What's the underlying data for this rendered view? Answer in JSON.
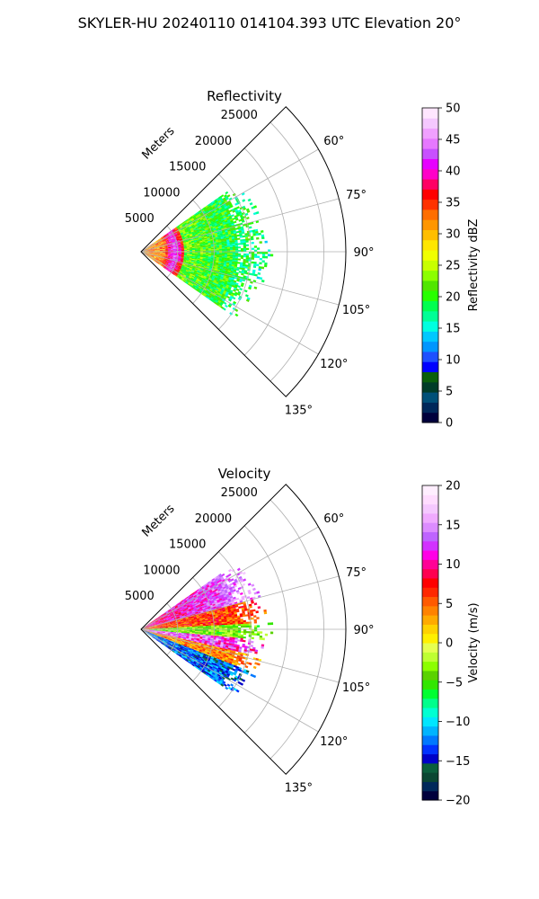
{
  "figure": {
    "title": "SKYLER-HU  20240110  014104.393 UTC Elevation 20°"
  },
  "chart_data": [
    {
      "type": "heatmap",
      "subtype": "polar-sector",
      "title": "Reflectivity",
      "range_label": "Meters",
      "range_ticks": [
        5000,
        10000,
        15000,
        20000,
        25000
      ],
      "range_lim": [
        0,
        28000
      ],
      "azimuth_range_deg": [
        45,
        135
      ],
      "azimuth_ticks": [
        "60°",
        "75°",
        "90°",
        "105°",
        "120°",
        "135°"
      ],
      "data_azimuth_range_deg": [
        55,
        125
      ],
      "data_max_range_m": 16500,
      "grid": true,
      "colorbar": {
        "label": "Reflectivity dBZ",
        "range": [
          0,
          50
        ],
        "ticks": [
          0,
          5,
          10,
          15,
          20,
          25,
          30,
          35,
          40,
          45,
          50
        ],
        "colors": [
          "#00003c",
          "#00285a",
          "#005078",
          "#003c28",
          "#0a5f0a",
          "#0000ff",
          "#1e50ff",
          "#0096ff",
          "#00c8ff",
          "#00ffe0",
          "#00ff96",
          "#00ff50",
          "#28ff00",
          "#50e600",
          "#8cff00",
          "#c8ff00",
          "#f0ff00",
          "#ffe600",
          "#ffbe00",
          "#ff9600",
          "#ff6e00",
          "#ff3200",
          "#ff0000",
          "#ff0064",
          "#ff00c8",
          "#e600ff",
          "#c850ff",
          "#e678ff",
          "#f0a0ff",
          "#f5c8ff",
          "#ffe6ff"
        ]
      }
    },
    {
      "type": "heatmap",
      "subtype": "polar-sector",
      "title": "Velocity",
      "range_label": "Meters",
      "range_ticks": [
        5000,
        10000,
        15000,
        20000,
        25000
      ],
      "range_lim": [
        0,
        28000
      ],
      "azimuth_range_deg": [
        45,
        135
      ],
      "azimuth_ticks": [
        "60°",
        "75°",
        "90°",
        "105°",
        "120°",
        "135°"
      ],
      "data_azimuth_range_deg": [
        55,
        125
      ],
      "data_max_range_m": 16500,
      "grid": true,
      "colorbar": {
        "label": "Velocity (m/s)",
        "range": [
          -20,
          20
        ],
        "ticks": [
          -20,
          -15,
          -10,
          -5,
          0,
          5,
          10,
          15,
          20
        ],
        "colors": [
          "#00003c",
          "#00285a",
          "#0a4632",
          "#0a5f3c",
          "#0000c8",
          "#0032ff",
          "#0078ff",
          "#00b4ff",
          "#00e6ff",
          "#00ffd2",
          "#00ff8c",
          "#00ff32",
          "#32e600",
          "#5ad200",
          "#8cff00",
          "#beff32",
          "#e6ff50",
          "#fff000",
          "#ffd200",
          "#ffaa00",
          "#ff8200",
          "#ff5a00",
          "#ff2800",
          "#ff0000",
          "#ff0050",
          "#ff0096",
          "#ff00e6",
          "#d232ff",
          "#be64ff",
          "#dc8cff",
          "#f0aaff",
          "#f5c8ff",
          "#ffdcff",
          "#ffeeff"
        ]
      }
    }
  ]
}
